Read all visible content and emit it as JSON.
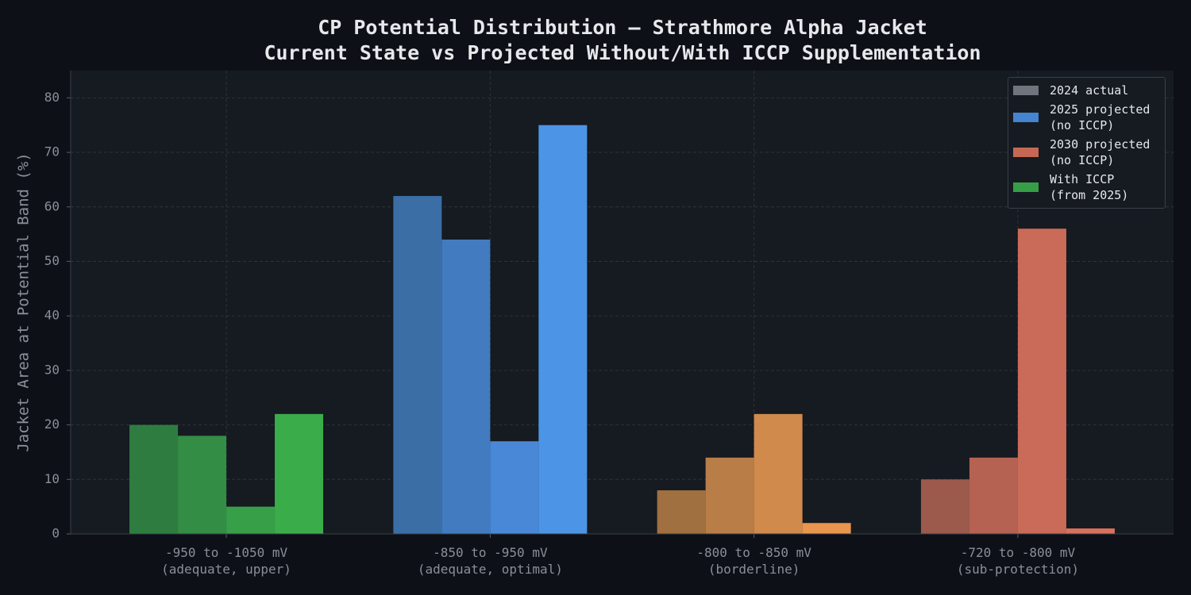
{
  "chart_data": {
    "type": "bar",
    "title": "CP Potential Distribution — Strathmore Alpha Jacket",
    "subtitle": "Current State vs Projected Without/With ICCP Supplementation",
    "y_label": "Jacket Area at Potential Band (%)",
    "categories": [
      "-950 to -1050 mV\n(adequate, upper)",
      "-850 to -950 mV\n(adequate, optimal)",
      "-800 to -850 mV\n(borderline)",
      "-720 to -800 mV\n(sub-protection)"
    ],
    "series": [
      {
        "name": "2024 actual",
        "color": "#7a7f87",
        "bar_colors": [
          "#2f7c40",
          "#3a6ea5",
          "#a07040",
          "#9c5a4c"
        ],
        "values": [
          20,
          62,
          8,
          10
        ]
      },
      {
        "name": "2025 projected\n(no ICCP)",
        "color": "#4a90e2",
        "bar_colors": [
          "#338d45",
          "#427bbf",
          "#b97d48",
          "#b56253"
        ],
        "values": [
          18,
          54,
          14,
          14
        ]
      },
      {
        "name": "2030 projected\n(no ICCP)",
        "color": "#d9705a",
        "bar_colors": [
          "#379f48",
          "#4888d6",
          "#d08a4c",
          "#c96b58"
        ],
        "values": [
          5,
          17,
          22,
          56
        ]
      },
      {
        "name": "With ICCP\n(from 2025)",
        "color": "#3aad4a",
        "bar_colors": [
          "#3aad4a",
          "#4c95e6",
          "#e8954f",
          "#d9725c"
        ],
        "values": [
          22,
          75,
          2,
          1
        ]
      }
    ],
    "ylim": [
      0,
      85
    ],
    "yticks": [
      0,
      10,
      20,
      30,
      40,
      50,
      60,
      70,
      80
    ],
    "grid": true,
    "legend": "upper right"
  }
}
